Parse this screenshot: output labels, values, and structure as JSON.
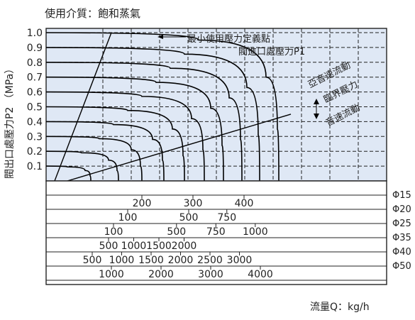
{
  "title": "使用介質：飽和蒸氣",
  "xlabel": "流量Q：kg/h",
  "ylabel": "閥出口處壓力P2 （MPa）",
  "annotations": {
    "min_pressure_point": "最小使用壓力定義點",
    "inlet_pressure": "閥進口處壓力P1",
    "subsonic_flow": "亞音速流動",
    "critical_pressure": "臨界壓力",
    "sonic_flow": "音速流動"
  },
  "colors": {
    "plot_background": "#dfe8f5",
    "curve": "#000000",
    "grid": "#222222",
    "table_background": "#ffffff"
  },
  "chart_data": {
    "type": "line",
    "title": "使用介質：飽和蒸氣",
    "xlabel": "流量Q：kg/h",
    "ylabel": "閥出口處壓力P2 （MPa）",
    "ylim": [
      0,
      1.0
    ],
    "y_ticks": [
      "0.1",
      "0.2",
      "0.3",
      "0.4",
      "0.5",
      "0.6",
      "0.7",
      "0.8",
      "0.9",
      "1.0"
    ],
    "grid": true,
    "inlet_pressure_curves": [
      {
        "p1": 0.1,
        "x": [
          0,
          30,
          55,
          62,
          63
        ],
        "y": [
          0.1,
          0.095,
          0.07,
          0.035,
          0
        ]
      },
      {
        "p1": 0.2,
        "x": [
          0,
          50,
          88,
          100,
          102
        ],
        "y": [
          0.2,
          0.19,
          0.14,
          0.07,
          0
        ]
      },
      {
        "p1": 0.3,
        "x": [
          0,
          75,
          120,
          133,
          135
        ],
        "y": [
          0.3,
          0.285,
          0.21,
          0.1,
          0
        ]
      },
      {
        "p1": 0.4,
        "x": [
          0,
          95,
          150,
          164,
          166
        ],
        "y": [
          0.4,
          0.38,
          0.28,
          0.14,
          0
        ]
      },
      {
        "p1": 0.5,
        "x": [
          0,
          115,
          178,
          193,
          195
        ],
        "y": [
          0.5,
          0.475,
          0.35,
          0.17,
          0
        ]
      },
      {
        "p1": 0.6,
        "x": [
          0,
          135,
          205,
          221,
          223
        ],
        "y": [
          0.6,
          0.57,
          0.42,
          0.21,
          0
        ]
      },
      {
        "p1": 0.7,
        "x": [
          0,
          155,
          232,
          248,
          250
        ],
        "y": [
          0.7,
          0.665,
          0.49,
          0.24,
          0
        ]
      },
      {
        "p1": 0.8,
        "x": [
          0,
          175,
          258,
          274,
          276
        ],
        "y": [
          0.8,
          0.76,
          0.56,
          0.28,
          0
        ]
      },
      {
        "p1": 0.9,
        "x": [
          0,
          195,
          283,
          299,
          301
        ],
        "y": [
          0.9,
          0.855,
          0.63,
          0.31,
          0
        ]
      },
      {
        "p1": 1.0,
        "x": [
          0,
          215,
          310,
          326,
          328
        ],
        "y": [
          1.0,
          0.95,
          0.7,
          0.35,
          0
        ]
      }
    ],
    "reference_lines": [
      {
        "name": "最小使用壓力定義點",
        "x": [
          12,
          92
        ],
        "y": [
          0,
          1.0
        ]
      },
      {
        "name": "臨界壓力",
        "x": [
          30,
          345
        ],
        "y": [
          0,
          0.45
        ]
      }
    ],
    "flow_scales": [
      {
        "label": "Φ15",
        "ticks": [],
        "tick_labels": []
      },
      {
        "label": "Φ20",
        "ticks": [
          200,
          300,
          400
        ],
        "tick_labels": [
          "200",
          "300",
          "400"
        ]
      },
      {
        "label": "Φ25",
        "ticks": [
          100,
          500,
          750
        ],
        "tick_labels": [
          "100",
          "500",
          "750"
        ]
      },
      {
        "label": "Φ35",
        "ticks": [
          100,
          500,
          750,
          1000
        ],
        "tick_labels": [
          "100",
          "500",
          "750",
          "1000"
        ]
      },
      {
        "label": "Φ40",
        "ticks": [
          500,
          1000,
          1500,
          2000
        ],
        "tick_labels": [
          "500",
          "1000",
          "1500",
          "2000"
        ]
      },
      {
        "label": "Φ50",
        "ticks": [
          500,
          1000,
          1500,
          2000,
          2500,
          3000
        ],
        "tick_labels": [
          "500",
          "1000",
          "1500",
          "2000",
          "2500",
          "3000"
        ]
      },
      {
        "label": "",
        "ticks": [
          1000,
          2000,
          3000,
          4000
        ],
        "tick_labels": [
          "1000",
          "2000",
          "3000",
          "4000"
        ]
      }
    ]
  }
}
